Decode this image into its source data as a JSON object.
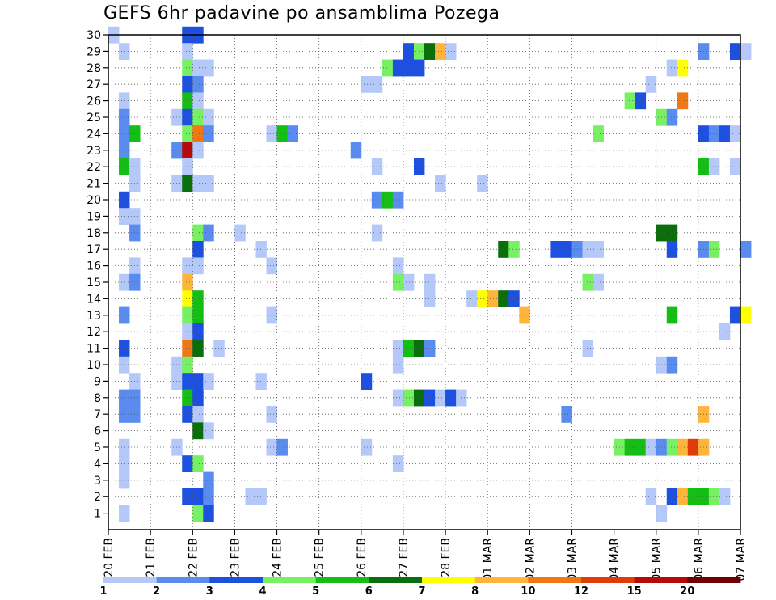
{
  "chart_data": {
    "type": "heatmap",
    "title": "GEFS 6hr padavine po ansamblima Pozega",
    "xlabel": "",
    "ylabel": "",
    "x_tick_labels": [
      "20 FEB",
      "21 FEB",
      "22 FEB",
      "23 FEB",
      "24 FEB",
      "25 FEB",
      "26 FEB",
      "27 FEB",
      "28 FEB",
      "01 MAR",
      "02 MAR",
      "03 MAR",
      "04 MAR",
      "05 MAR",
      "06 MAR",
      "07 MAR"
    ],
    "y_tick_labels": [
      "1",
      "2",
      "3",
      "4",
      "5",
      "6",
      "7",
      "8",
      "9",
      "10",
      "11",
      "12",
      "13",
      "14",
      "15",
      "16",
      "17",
      "18",
      "19",
      "20",
      "21",
      "22",
      "23",
      "24",
      "25",
      "26",
      "27",
      "28",
      "29",
      "30"
    ],
    "time_steps_per_day": 4,
    "grid": "dotted",
    "colorbar": {
      "position": "bottom",
      "labels": [
        "1",
        "2",
        "3",
        "4",
        "5",
        "6",
        "7",
        "8",
        "10",
        "12",
        "15",
        "20"
      ],
      "colors": [
        "#b4c8fa",
        "#5a8cf0",
        "#1e50e0",
        "#78f064",
        "#14be14",
        "#0a6e0a",
        "#ffff00",
        "#ffb43c",
        "#f07814",
        "#e03c0a",
        "#b40a0a",
        "#6e0000"
      ]
    },
    "cells": [
      [
        0,
        30,
        0
      ],
      [
        7,
        30,
        2
      ],
      [
        8,
        30,
        2
      ],
      [
        1,
        29,
        0
      ],
      [
        7,
        29,
        0
      ],
      [
        28,
        29,
        2
      ],
      [
        29,
        29,
        3
      ],
      [
        30,
        29,
        5
      ],
      [
        31,
        29,
        7
      ],
      [
        32,
        29,
        0
      ],
      [
        56,
        29,
        1
      ],
      [
        59,
        29,
        2
      ],
      [
        60,
        29,
        0
      ],
      [
        7,
        28,
        3
      ],
      [
        8,
        28,
        0
      ],
      [
        9,
        28,
        0
      ],
      [
        26,
        28,
        3
      ],
      [
        27,
        28,
        2
      ],
      [
        28,
        28,
        2
      ],
      [
        29,
        28,
        2
      ],
      [
        53,
        28,
        0
      ],
      [
        54,
        28,
        6
      ],
      [
        7,
        27,
        2
      ],
      [
        8,
        27,
        1
      ],
      [
        24,
        27,
        0
      ],
      [
        25,
        27,
        0
      ],
      [
        51,
        27,
        0
      ],
      [
        1,
        26,
        0
      ],
      [
        7,
        26,
        4
      ],
      [
        8,
        26,
        0
      ],
      [
        49,
        26,
        3
      ],
      [
        50,
        26,
        2
      ],
      [
        54,
        26,
        8
      ],
      [
        1,
        25,
        1
      ],
      [
        6,
        25,
        0
      ],
      [
        7,
        25,
        2
      ],
      [
        8,
        25,
        3
      ],
      [
        9,
        25,
        0
      ],
      [
        52,
        25,
        3
      ],
      [
        53,
        25,
        1
      ],
      [
        1,
        24,
        1
      ],
      [
        2,
        24,
        4
      ],
      [
        7,
        24,
        3
      ],
      [
        8,
        24,
        8
      ],
      [
        9,
        24,
        1
      ],
      [
        15,
        24,
        0
      ],
      [
        16,
        24,
        4
      ],
      [
        17,
        24,
        1
      ],
      [
        46,
        24,
        3
      ],
      [
        56,
        24,
        2
      ],
      [
        57,
        24,
        1
      ],
      [
        58,
        24,
        2
      ],
      [
        59,
        24,
        0
      ],
      [
        1,
        23,
        1
      ],
      [
        6,
        23,
        1
      ],
      [
        7,
        23,
        10
      ],
      [
        8,
        23,
        0
      ],
      [
        23,
        23,
        1
      ],
      [
        1,
        22,
        4
      ],
      [
        2,
        22,
        0
      ],
      [
        7,
        22,
        0
      ],
      [
        25,
        22,
        0
      ],
      [
        29,
        22,
        2
      ],
      [
        56,
        22,
        4
      ],
      [
        57,
        22,
        0
      ],
      [
        59,
        22,
        0
      ],
      [
        2,
        21,
        0
      ],
      [
        6,
        21,
        0
      ],
      [
        7,
        21,
        5
      ],
      [
        8,
        21,
        0
      ],
      [
        9,
        21,
        0
      ],
      [
        31,
        21,
        0
      ],
      [
        35,
        21,
        0
      ],
      [
        1,
        20,
        2
      ],
      [
        25,
        20,
        1
      ],
      [
        26,
        20,
        4
      ],
      [
        27,
        20,
        1
      ],
      [
        1,
        19,
        0
      ],
      [
        2,
        19,
        0
      ],
      [
        2,
        18,
        1
      ],
      [
        8,
        18,
        3
      ],
      [
        9,
        18,
        1
      ],
      [
        12,
        18,
        0
      ],
      [
        25,
        18,
        0
      ],
      [
        52,
        18,
        5
      ],
      [
        53,
        18,
        5
      ],
      [
        8,
        17,
        2
      ],
      [
        14,
        17,
        0
      ],
      [
        37,
        17,
        5
      ],
      [
        38,
        17,
        3
      ],
      [
        42,
        17,
        2
      ],
      [
        43,
        17,
        2
      ],
      [
        44,
        17,
        1
      ],
      [
        45,
        17,
        0
      ],
      [
        46,
        17,
        0
      ],
      [
        53,
        17,
        2
      ],
      [
        56,
        17,
        1
      ],
      [
        57,
        17,
        3
      ],
      [
        60,
        17,
        1
      ],
      [
        2,
        16,
        0
      ],
      [
        7,
        16,
        0
      ],
      [
        8,
        16,
        0
      ],
      [
        15,
        16,
        0
      ],
      [
        27,
        16,
        0
      ],
      [
        1,
        15,
        0
      ],
      [
        2,
        15,
        1
      ],
      [
        7,
        15,
        7
      ],
      [
        27,
        15,
        3
      ],
      [
        28,
        15,
        0
      ],
      [
        30,
        15,
        0
      ],
      [
        45,
        15,
        3
      ],
      [
        46,
        15,
        0
      ],
      [
        7,
        14,
        6
      ],
      [
        8,
        14,
        4
      ],
      [
        30,
        14,
        0
      ],
      [
        34,
        14,
        0
      ],
      [
        35,
        14,
        6
      ],
      [
        36,
        14,
        7
      ],
      [
        37,
        14,
        5
      ],
      [
        38,
        14,
        2
      ],
      [
        1,
        13,
        1
      ],
      [
        7,
        13,
        3
      ],
      [
        8,
        13,
        4
      ],
      [
        15,
        13,
        0
      ],
      [
        39,
        13,
        7
      ],
      [
        53,
        13,
        4
      ],
      [
        59,
        13,
        2
      ],
      [
        60,
        13,
        6
      ],
      [
        7,
        12,
        0
      ],
      [
        8,
        12,
        2
      ],
      [
        58,
        12,
        0
      ],
      [
        1,
        11,
        2
      ],
      [
        7,
        11,
        8
      ],
      [
        8,
        11,
        5
      ],
      [
        10,
        11,
        0
      ],
      [
        27,
        11,
        0
      ],
      [
        28,
        11,
        4
      ],
      [
        29,
        11,
        5
      ],
      [
        30,
        11,
        1
      ],
      [
        45,
        11,
        0
      ],
      [
        1,
        10,
        0
      ],
      [
        6,
        10,
        0
      ],
      [
        7,
        10,
        3
      ],
      [
        27,
        10,
        0
      ],
      [
        52,
        10,
        0
      ],
      [
        53,
        10,
        1
      ],
      [
        2,
        9,
        0
      ],
      [
        6,
        9,
        0
      ],
      [
        7,
        9,
        2
      ],
      [
        8,
        9,
        2
      ],
      [
        9,
        9,
        0
      ],
      [
        14,
        9,
        0
      ],
      [
        24,
        9,
        2
      ],
      [
        1,
        8,
        1
      ],
      [
        2,
        8,
        1
      ],
      [
        7,
        8,
        4
      ],
      [
        8,
        8,
        2
      ],
      [
        27,
        8,
        0
      ],
      [
        28,
        8,
        3
      ],
      [
        29,
        8,
        5
      ],
      [
        30,
        8,
        2
      ],
      [
        31,
        8,
        0
      ],
      [
        32,
        8,
        2
      ],
      [
        33,
        8,
        0
      ],
      [
        1,
        7,
        1
      ],
      [
        2,
        7,
        1
      ],
      [
        7,
        7,
        2
      ],
      [
        8,
        7,
        0
      ],
      [
        15,
        7,
        0
      ],
      [
        43,
        7,
        1
      ],
      [
        56,
        7,
        7
      ],
      [
        8,
        6,
        5
      ],
      [
        9,
        6,
        0
      ],
      [
        1,
        5,
        0
      ],
      [
        6,
        5,
        0
      ],
      [
        15,
        5,
        0
      ],
      [
        16,
        5,
        1
      ],
      [
        24,
        5,
        0
      ],
      [
        48,
        5,
        3
      ],
      [
        49,
        5,
        4
      ],
      [
        50,
        5,
        4
      ],
      [
        51,
        5,
        0
      ],
      [
        52,
        5,
        1
      ],
      [
        53,
        5,
        3
      ],
      [
        54,
        5,
        7
      ],
      [
        55,
        5,
        9
      ],
      [
        56,
        5,
        7
      ],
      [
        1,
        4,
        0
      ],
      [
        7,
        4,
        2
      ],
      [
        8,
        4,
        3
      ],
      [
        27,
        4,
        0
      ],
      [
        1,
        3,
        0
      ],
      [
        9,
        3,
        1
      ],
      [
        7,
        2,
        2
      ],
      [
        8,
        2,
        2
      ],
      [
        9,
        2,
        1
      ],
      [
        13,
        2,
        0
      ],
      [
        14,
        2,
        0
      ],
      [
        51,
        2,
        0
      ],
      [
        53,
        2,
        2
      ],
      [
        54,
        2,
        7
      ],
      [
        55,
        2,
        4
      ],
      [
        56,
        2,
        4
      ],
      [
        57,
        2,
        3
      ],
      [
        58,
        2,
        0
      ],
      [
        1,
        1,
        0
      ],
      [
        8,
        1,
        3
      ],
      [
        9,
        1,
        2
      ],
      [
        52,
        1,
        0
      ]
    ]
  }
}
